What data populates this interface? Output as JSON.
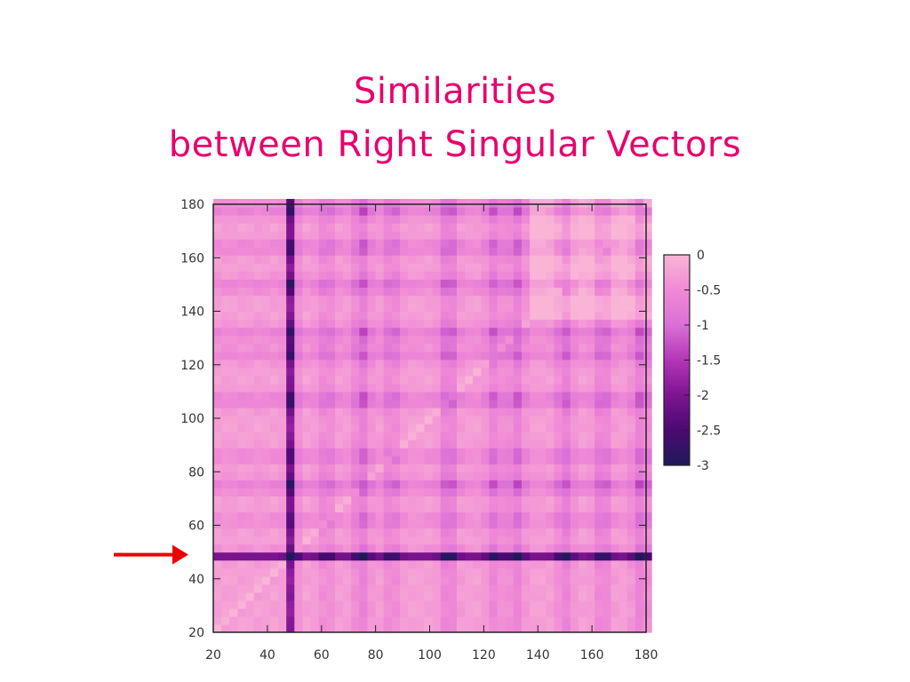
{
  "slide": {
    "title_line1": "Similarities",
    "title_line2": "between Right Singular Vectors"
  },
  "colors": {
    "title": "#e8006c",
    "arrow": "#ee0000",
    "colormap": [
      "#1e1a5a",
      "#4a0a72",
      "#7e1490",
      "#b436b6",
      "#da70d6",
      "#f08ad6",
      "#f9b4d6"
    ]
  },
  "chart_data": {
    "type": "heatmap",
    "title": "",
    "xlabel": "",
    "ylabel": "",
    "xlim": [
      20,
      180
    ],
    "ylim": [
      20,
      180
    ],
    "x_ticks": [
      "20",
      "40",
      "60",
      "80",
      "100",
      "120",
      "140",
      "160",
      "180"
    ],
    "y_ticks": [
      "20",
      "40",
      "60",
      "80",
      "100",
      "120",
      "140",
      "160",
      "180"
    ],
    "colorbar": {
      "range": [
        -3,
        0
      ],
      "ticks": [
        "0",
        "-0.5",
        "-1",
        "-1.5",
        "-2",
        "-2.5",
        "-3"
      ]
    },
    "structure": {
      "dark_row_index": 49,
      "dark_column_index": 49,
      "other_dark_bands": [
        62,
        75,
        86,
        107,
        124,
        132,
        150,
        164,
        178
      ],
      "block_boundary": 137
    },
    "annotation": {
      "type": "arrow",
      "points_to_row": 49
    }
  }
}
